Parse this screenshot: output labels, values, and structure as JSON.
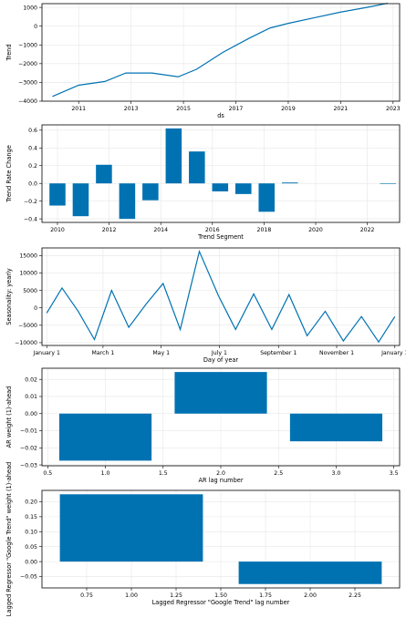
{
  "chart_data": [
    {
      "id": "trend",
      "type": "line",
      "xlabel": "ds",
      "ylabel": "Trend",
      "xlim": [
        2009.6,
        2023.25
      ],
      "ylim": [
        -4000,
        1200
      ],
      "xticks": [
        2011,
        2013,
        2015,
        2017,
        2019,
        2021,
        2023
      ],
      "xticklabels": [
        "2011",
        "2013",
        "2015",
        "2017",
        "2019",
        "2021",
        "2023"
      ],
      "yticks": [
        -4000,
        -3000,
        -2000,
        -1000,
        0,
        1000
      ],
      "yticklabels": [
        "−4000",
        "−3000",
        "−2000",
        "−1000",
        "0",
        "1000"
      ],
      "grid": true,
      "color": "#0072B2",
      "x": [
        2010.0,
        2011.0,
        2012.0,
        2012.8,
        2013.8,
        2014.8,
        2015.5,
        2016.5,
        2017.5,
        2018.3,
        2019.0,
        2020.0,
        2021.0,
        2022.0,
        2022.8
      ],
      "y": [
        -3750,
        -3150,
        -2950,
        -2500,
        -2500,
        -2700,
        -2300,
        -1400,
        -650,
        -100,
        150,
        450,
        750,
        1000,
        1220
      ]
    },
    {
      "id": "trend-rate-change",
      "type": "bar",
      "xlabel": "Trend Segment",
      "ylabel": "Trend Rate Change",
      "xlim": [
        2009.4,
        2023.25
      ],
      "ylim": [
        -0.44,
        0.66
      ],
      "xticks": [
        2010,
        2012,
        2014,
        2016,
        2018,
        2020,
        2022
      ],
      "xticklabels": [
        "2010",
        "2012",
        "2014",
        "2016",
        "2018",
        "2020",
        "2022"
      ],
      "yticks": [
        -0.4,
        -0.2,
        0.0,
        0.2,
        0.4,
        0.6
      ],
      "yticklabels": [
        "−0.4",
        "−0.2",
        "0.0",
        "0.2",
        "0.4",
        "0.6"
      ],
      "grid": true,
      "color": "#0072B2",
      "bar_width": 0.62,
      "x": [
        2010.0,
        2010.9,
        2011.8,
        2012.7,
        2013.6,
        2014.5,
        2015.4,
        2016.3,
        2017.2,
        2018.1,
        2019.0,
        2022.8
      ],
      "values": [
        -0.25,
        -0.37,
        0.21,
        -0.4,
        -0.19,
        0.62,
        0.36,
        -0.09,
        -0.12,
        -0.32,
        0.01,
        -0.002
      ]
    },
    {
      "id": "seasonality-yearly",
      "type": "line",
      "xlabel": "Day of year",
      "ylabel": "Seasonality: yearly",
      "xlim": [
        -5,
        370
      ],
      "ylim": [
        -10800,
        17200
      ],
      "xticks": [
        0,
        59,
        120,
        181,
        243,
        304,
        365
      ],
      "xticklabels": [
        "January 1",
        "March 1",
        "May 1",
        "July 1",
        "September 1",
        "November 1",
        "January 1"
      ],
      "yticks": [
        -10000,
        -5000,
        0,
        5000,
        10000,
        15000
      ],
      "yticklabels": [
        "−10000",
        "−5000",
        "0",
        "5000",
        "10000",
        "15000"
      ],
      "grid": true,
      "color": "#0072B2",
      "x": [
        0,
        16,
        33,
        50,
        68,
        86,
        104,
        122,
        140,
        160,
        180,
        198,
        217,
        236,
        254,
        273,
        292,
        311,
        330,
        348,
        365
      ],
      "y": [
        -1500,
        5700,
        -1000,
        -9100,
        5000,
        -5600,
        1000,
        7000,
        -6200,
        16200,
        3500,
        -6200,
        4000,
        -6200,
        3800,
        -8000,
        -1000,
        -9500,
        -2500,
        -9800,
        -2500
      ]
    },
    {
      "id": "ar-weights",
      "type": "bar",
      "xlabel": "AR lag number",
      "ylabel": "AR weight (1)-ahead",
      "xlim": [
        0.45,
        3.55
      ],
      "ylim": [
        -0.0305,
        0.0265
      ],
      "xticks": [
        0.5,
        1.0,
        1.5,
        2.0,
        2.5,
        3.0,
        3.5
      ],
      "xticklabels": [
        "0.5",
        "1.0",
        "1.5",
        "2.0",
        "2.5",
        "3.0",
        "3.5"
      ],
      "yticks": [
        -0.03,
        -0.02,
        -0.01,
        0.0,
        0.01,
        0.02
      ],
      "yticklabels": [
        "−0.03",
        "−0.02",
        "−0.01",
        "0.00",
        "0.01",
        "0.02"
      ],
      "grid": true,
      "color": "#0072B2",
      "bar_width": 0.8,
      "x": [
        1,
        2,
        3
      ],
      "values": [
        -0.0275,
        0.0243,
        -0.0162
      ]
    },
    {
      "id": "lagged-regressor",
      "type": "bar",
      "xlabel": "Lagged Regressor \"Google Trend\" lag number",
      "ylabel": "Lagged Regressor \"Google Trend\" weight (1)-ahead",
      "xlim": [
        0.5,
        2.5
      ],
      "ylim": [
        -0.088,
        0.238
      ],
      "xticks": [
        0.75,
        1.0,
        1.25,
        1.5,
        1.75,
        2.0,
        2.25
      ],
      "xticklabels": [
        "0.75",
        "1.00",
        "1.25",
        "1.50",
        "1.75",
        "2.00",
        "2.25"
      ],
      "yticks": [
        -0.05,
        0.0,
        0.05,
        0.1,
        0.15,
        0.2
      ],
      "yticklabels": [
        "−0.05",
        "0.00",
        "0.05",
        "0.10",
        "0.15",
        "0.20"
      ],
      "grid": true,
      "color": "#0072B2",
      "bar_width": 0.8,
      "x": [
        1,
        2
      ],
      "values": [
        0.225,
        -0.075
      ]
    }
  ]
}
